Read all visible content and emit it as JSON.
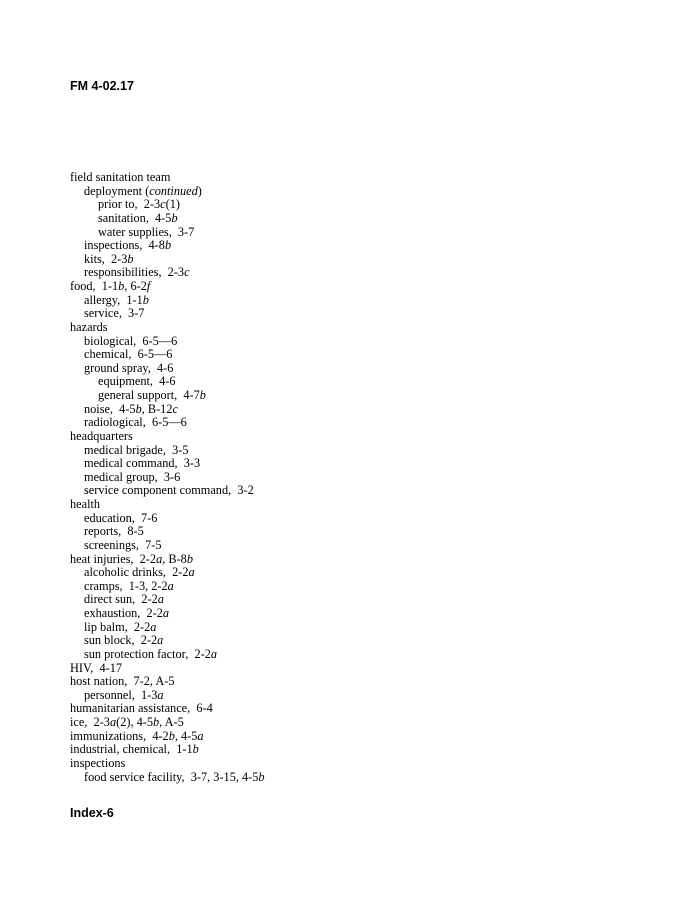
{
  "header": {
    "running_head": "FM 4-02.17"
  },
  "footer": {
    "page_number": "Index-6"
  },
  "entries": [
    {
      "level": 0,
      "parts": [
        [
          "field sanitation team",
          0
        ]
      ]
    },
    {
      "level": 1,
      "parts": [
        [
          "deployment (",
          0
        ],
        [
          "continued",
          1
        ],
        [
          ")",
          0
        ]
      ]
    },
    {
      "level": 2,
      "parts": [
        [
          "prior to,  2-3",
          0
        ],
        [
          "c",
          1
        ],
        [
          "(1)",
          0
        ]
      ]
    },
    {
      "level": 2,
      "parts": [
        [
          "sanitation,  4-5",
          0
        ],
        [
          "b",
          1
        ]
      ]
    },
    {
      "level": 2,
      "parts": [
        [
          "water supplies,  3-7",
          0
        ]
      ]
    },
    {
      "level": 1,
      "parts": [
        [
          "inspections,  4-8",
          0
        ],
        [
          "b",
          1
        ]
      ]
    },
    {
      "level": 1,
      "parts": [
        [
          "kits,  2-3",
          0
        ],
        [
          "b",
          1
        ]
      ]
    },
    {
      "level": 1,
      "parts": [
        [
          "responsibilities,  2-3",
          0
        ],
        [
          "c",
          1
        ]
      ]
    },
    {
      "level": 0,
      "parts": [
        [
          "food,  1-1",
          0
        ],
        [
          "b",
          1
        ],
        [
          ", 6-2",
          0
        ],
        [
          "f",
          1
        ]
      ]
    },
    {
      "level": 1,
      "parts": [
        [
          "allergy,  1-1",
          0
        ],
        [
          "b",
          1
        ]
      ]
    },
    {
      "level": 1,
      "parts": [
        [
          "service,  3-7",
          0
        ]
      ]
    },
    {
      "level": 0,
      "parts": [
        [
          "hazards",
          0
        ]
      ]
    },
    {
      "level": 1,
      "parts": [
        [
          "biological,  6-5—6",
          0
        ]
      ]
    },
    {
      "level": 1,
      "parts": [
        [
          "chemical,  6-5—6",
          0
        ]
      ]
    },
    {
      "level": 1,
      "parts": [
        [
          "ground spray,  4-6",
          0
        ]
      ]
    },
    {
      "level": 2,
      "parts": [
        [
          "equipment,  4-6",
          0
        ]
      ]
    },
    {
      "level": 2,
      "parts": [
        [
          "general support,  4-7",
          0
        ],
        [
          "b",
          1
        ]
      ]
    },
    {
      "level": 1,
      "parts": [
        [
          "noise,  4-5",
          0
        ],
        [
          "b",
          1
        ],
        [
          ", B-12",
          0
        ],
        [
          "c",
          1
        ]
      ]
    },
    {
      "level": 1,
      "parts": [
        [
          "radiological,  6-5—6",
          0
        ]
      ]
    },
    {
      "level": 0,
      "parts": [
        [
          "headquarters",
          0
        ]
      ]
    },
    {
      "level": 1,
      "parts": [
        [
          "medical brigade,  3-5",
          0
        ]
      ]
    },
    {
      "level": 1,
      "parts": [
        [
          "medical command,  3-3",
          0
        ]
      ]
    },
    {
      "level": 1,
      "parts": [
        [
          "medical group,  3-6",
          0
        ]
      ]
    },
    {
      "level": 1,
      "parts": [
        [
          "service component command,  3-2",
          0
        ]
      ]
    },
    {
      "level": 0,
      "parts": [
        [
          "health",
          0
        ]
      ]
    },
    {
      "level": 1,
      "parts": [
        [
          "education,  7-6",
          0
        ]
      ]
    },
    {
      "level": 1,
      "parts": [
        [
          "reports,  8-5",
          0
        ]
      ]
    },
    {
      "level": 1,
      "parts": [
        [
          "screenings,  7-5",
          0
        ]
      ]
    },
    {
      "level": 0,
      "parts": [
        [
          "heat injuries,  2-2",
          0
        ],
        [
          "a",
          1
        ],
        [
          ", B-8",
          0
        ],
        [
          "b",
          1
        ]
      ]
    },
    {
      "level": 1,
      "parts": [
        [
          "alcoholic drinks,  2-2",
          0
        ],
        [
          "a",
          1
        ]
      ]
    },
    {
      "level": 1,
      "parts": [
        [
          "cramps,  1-3, 2-2",
          0
        ],
        [
          "a",
          1
        ]
      ]
    },
    {
      "level": 1,
      "parts": [
        [
          "direct sun,  2-2",
          0
        ],
        [
          "a",
          1
        ]
      ]
    },
    {
      "level": 1,
      "parts": [
        [
          "exhaustion,  2-2",
          0
        ],
        [
          "a",
          1
        ]
      ]
    },
    {
      "level": 1,
      "parts": [
        [
          "lip balm,  2-2",
          0
        ],
        [
          "a",
          1
        ]
      ]
    },
    {
      "level": 1,
      "parts": [
        [
          "sun block,  2-2",
          0
        ],
        [
          "a",
          1
        ]
      ]
    },
    {
      "level": 1,
      "parts": [
        [
          "sun protection factor,  2-2",
          0
        ],
        [
          "a",
          1
        ]
      ]
    },
    {
      "level": 0,
      "parts": [
        [
          "HIV,  4-17",
          0
        ]
      ]
    },
    {
      "level": 0,
      "parts": [
        [
          "host nation,  7-2, A-5",
          0
        ]
      ]
    },
    {
      "level": 1,
      "parts": [
        [
          "personnel,  1-3",
          0
        ],
        [
          "a",
          1
        ]
      ]
    },
    {
      "level": 0,
      "parts": [
        [
          "humanitarian assistance,  6-4",
          0
        ]
      ]
    },
    {
      "level": 0,
      "parts": [
        [
          "ice,  2-3",
          0
        ],
        [
          "a",
          1
        ],
        [
          "(2), 4-5",
          0
        ],
        [
          "b",
          1
        ],
        [
          ", A-5",
          0
        ]
      ]
    },
    {
      "level": 0,
      "parts": [
        [
          "immunizations,  4-2",
          0
        ],
        [
          "b",
          1
        ],
        [
          ", 4-5",
          0
        ],
        [
          "a",
          1
        ]
      ]
    },
    {
      "level": 0,
      "parts": [
        [
          "industrial, chemical,  1-1",
          0
        ],
        [
          "b",
          1
        ]
      ]
    },
    {
      "level": 0,
      "parts": [
        [
          "inspections",
          0
        ]
      ]
    },
    {
      "level": 1,
      "parts": [
        [
          "food service facility,  3-7, 3-15, 4-5",
          0
        ],
        [
          "b",
          1
        ]
      ]
    }
  ]
}
